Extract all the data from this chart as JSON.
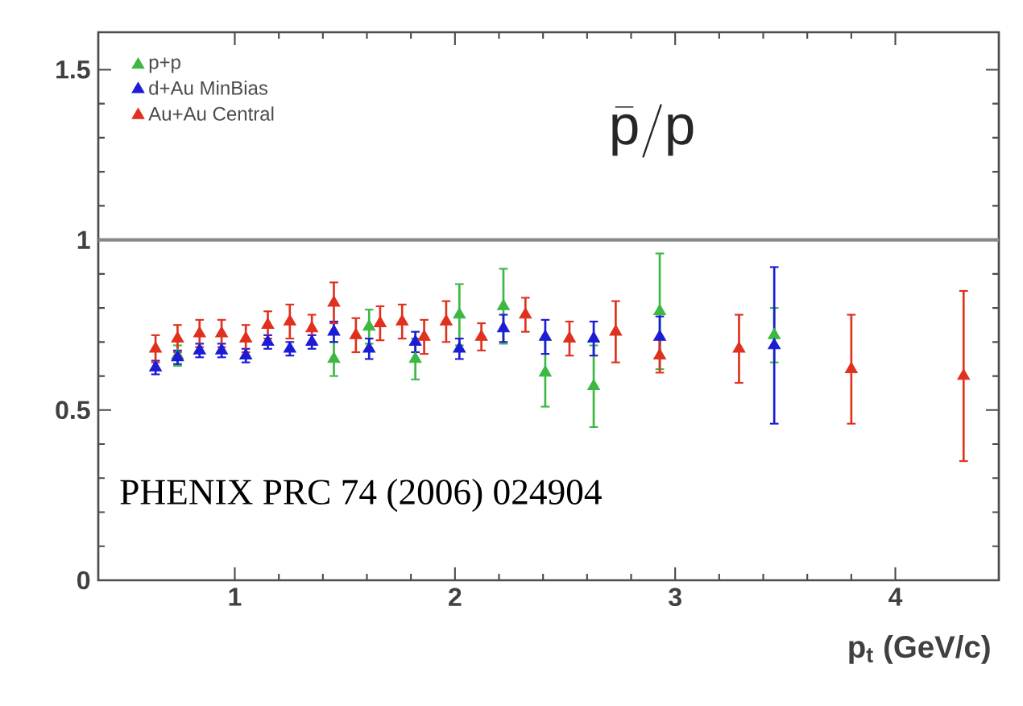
{
  "chart_data": {
    "type": "scatter",
    "xlabel": "p$_{t}$ (GeV/c)",
    "xlim": [
      0.38,
      4.47
    ],
    "ylim": [
      0,
      1.61
    ],
    "xticks": [
      1,
      2,
      3,
      4
    ],
    "yticks": [
      0,
      0.5,
      1,
      1.5
    ],
    "legend": "top left",
    "marker": "triangle",
    "annotations": [
      "\\bar{\\mathsf{p}}/\\mathsf{p}",
      "PHENIX PRC 74 (2006) 024904"
    ],
    "ref_lines": [
      {
        "axis": "y",
        "value": 1,
        "color": "#888888"
      }
    ],
    "series": [
      {
        "name": "p+p",
        "color": "#3cb843",
        "x": [
          0.74,
          1.45,
          1.61,
          1.82,
          2.02,
          2.22,
          2.41,
          2.63,
          2.93,
          3.45
        ],
        "values": [
          0.66,
          0.65,
          0.745,
          0.65,
          0.78,
          0.805,
          0.61,
          0.57,
          0.79,
          0.72
        ],
        "errors": [
          0.03,
          0.05,
          0.05,
          0.06,
          0.09,
          0.11,
          0.1,
          0.12,
          0.17,
          0.08
        ]
      },
      {
        "name": "d+Au  MinBias",
        "color": "#1c1cd6",
        "x": [
          0.64,
          0.74,
          0.84,
          0.94,
          1.05,
          1.15,
          1.25,
          1.35,
          1.45,
          1.61,
          1.82,
          2.02,
          2.22,
          2.41,
          2.63,
          2.93,
          3.45
        ],
        "values": [
          0.625,
          0.655,
          0.675,
          0.675,
          0.66,
          0.7,
          0.68,
          0.7,
          0.73,
          0.68,
          0.7,
          0.68,
          0.74,
          0.715,
          0.71,
          0.715,
          0.69
        ],
        "errors": [
          0.02,
          0.02,
          0.02,
          0.02,
          0.02,
          0.02,
          0.02,
          0.02,
          0.03,
          0.03,
          0.03,
          0.03,
          0.04,
          0.05,
          0.05,
          0.06,
          0.23
        ]
      },
      {
        "name": "Au+Au Central",
        "color": "#e0301e",
        "x": [
          0.64,
          0.74,
          0.84,
          0.94,
          1.05,
          1.15,
          1.25,
          1.35,
          1.45,
          1.55,
          1.66,
          1.76,
          1.86,
          1.96,
          2.12,
          2.32,
          2.52,
          2.73,
          2.93,
          3.29,
          3.8,
          4.31
        ],
        "values": [
          0.68,
          0.71,
          0.725,
          0.725,
          0.71,
          0.75,
          0.76,
          0.74,
          0.815,
          0.72,
          0.755,
          0.76,
          0.715,
          0.76,
          0.715,
          0.78,
          0.71,
          0.73,
          0.66,
          0.68,
          0.62,
          0.6
        ],
        "errors": [
          0.04,
          0.04,
          0.04,
          0.04,
          0.04,
          0.04,
          0.05,
          0.04,
          0.06,
          0.05,
          0.05,
          0.05,
          0.05,
          0.06,
          0.04,
          0.05,
          0.05,
          0.09,
          0.05,
          0.1,
          0.16,
          0.25
        ]
      }
    ]
  }
}
